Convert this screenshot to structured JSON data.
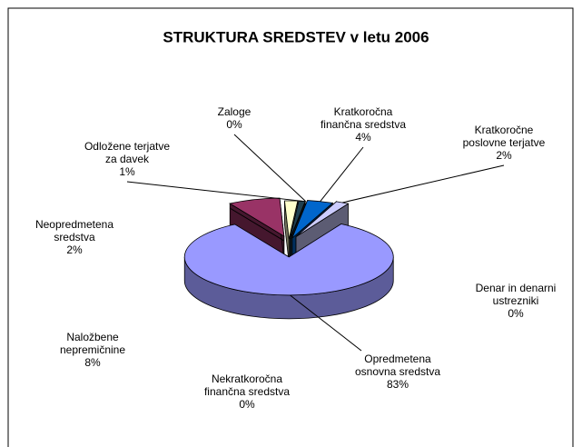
{
  "chart_data": {
    "type": "pie",
    "title": "STRUKTURA SREDSTEV v letu 2006",
    "categories": [
      "Opredmetena\nosnovna sredstva",
      "Denar in denarni\nustrezniki",
      "Nekratkoročna\nfinančna sredstva",
      "Naložbene\nnepremičnine",
      "Neopredmetena\nsredstva",
      "Odložene terjatve\nza davek",
      "Zaloge",
      "Kratkoročna\nfinančna sredstva",
      "Kratkoročne\nposlovne terjatve"
    ],
    "values": [
      83,
      0,
      0,
      8,
      2,
      1,
      0,
      4,
      2
    ],
    "value_labels": [
      "83%",
      "0%",
      "0%",
      "8%",
      "2%",
      "1%",
      "0%",
      "4%",
      "2%"
    ],
    "colors": [
      "#9999ff",
      "#ff8080",
      "#ccffff",
      "#993366",
      "#ffffcc",
      "#1f3f4f",
      "#ccffff",
      "#0066cc",
      "#ccccff"
    ]
  }
}
